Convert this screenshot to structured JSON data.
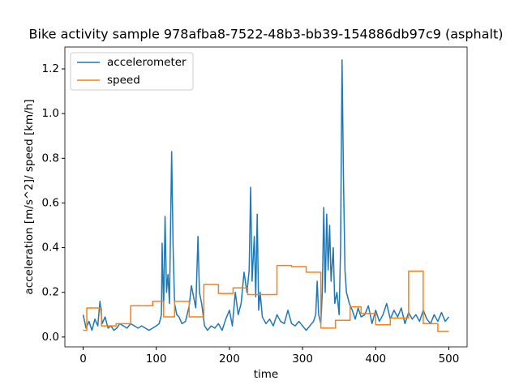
{
  "chart_data": {
    "type": "line",
    "title": "Bike activity sample 978afba8-7522-48b3-bb39-154886db97c9 (asphalt)",
    "xlabel": "time",
    "ylabel": "acceleration [m/s^2]/ speed [km/h]",
    "xlim": [
      -25,
      525
    ],
    "ylim": [
      -0.044,
      1.298
    ],
    "xticks": [
      0,
      100,
      200,
      300,
      400,
      500
    ],
    "yticks": [
      {
        "value": 0.0,
        "label": "0.0"
      },
      0.2,
      0.4,
      0.6,
      0.8,
      {
        "value": 1.0,
        "label": "1.0"
      },
      1.2
    ],
    "legend": "upper left",
    "series": [
      {
        "name": "accelerometer",
        "color": "#1f77b4",
        "x": [
          0,
          4,
          8,
          12,
          16,
          20,
          23,
          26,
          30,
          34,
          38,
          42,
          46,
          50,
          55,
          60,
          65,
          70,
          75,
          80,
          85,
          90,
          95,
          100,
          104,
          107,
          108,
          110,
          112,
          114,
          116,
          118,
          120,
          121,
          123,
          125,
          128,
          131,
          135,
          140,
          145,
          148,
          151,
          154,
          157,
          159,
          162,
          166,
          170,
          175,
          180,
          185,
          190,
          195,
          200,
          204,
          208,
          212,
          216,
          220,
          224,
          227,
          229,
          231,
          234,
          236,
          238,
          240,
          242,
          245,
          250,
          255,
          260,
          265,
          270,
          275,
          280,
          285,
          290,
          295,
          300,
          305,
          310,
          315,
          318,
          320,
          322,
          325,
          327,
          329,
          331,
          333,
          335,
          337,
          339,
          342,
          344,
          347,
          350,
          352,
          354,
          356,
          358,
          360,
          364,
          368,
          372,
          376,
          380,
          385,
          390,
          395,
          400,
          405,
          410,
          415,
          420,
          425,
          430,
          435,
          440,
          445,
          450,
          455,
          460,
          465,
          470,
          475,
          480,
          485,
          490,
          495,
          500
        ],
        "values": [
          0.1,
          0.04,
          0.07,
          0.03,
          0.08,
          0.05,
          0.16,
          0.06,
          0.09,
          0.04,
          0.05,
          0.03,
          0.04,
          0.06,
          0.05,
          0.04,
          0.06,
          0.05,
          0.04,
          0.05,
          0.04,
          0.03,
          0.04,
          0.05,
          0.06,
          0.1,
          0.42,
          0.12,
          0.54,
          0.2,
          0.28,
          0.15,
          0.6,
          0.83,
          0.4,
          0.15,
          0.1,
          0.09,
          0.06,
          0.07,
          0.14,
          0.23,
          0.18,
          0.13,
          0.45,
          0.2,
          0.15,
          0.05,
          0.03,
          0.05,
          0.04,
          0.06,
          0.03,
          0.08,
          0.12,
          0.05,
          0.2,
          0.1,
          0.15,
          0.29,
          0.2,
          0.3,
          0.67,
          0.25,
          0.45,
          0.18,
          0.55,
          0.12,
          0.2,
          0.09,
          0.06,
          0.08,
          0.05,
          0.1,
          0.07,
          0.06,
          0.12,
          0.06,
          0.05,
          0.07,
          0.05,
          0.03,
          0.05,
          0.07,
          0.1,
          0.25,
          0.1,
          0.06,
          0.2,
          0.58,
          0.2,
          0.55,
          0.3,
          0.5,
          0.25,
          0.4,
          0.15,
          0.2,
          0.1,
          0.4,
          1.24,
          0.7,
          0.3,
          0.2,
          0.15,
          0.12,
          0.08,
          0.13,
          0.09,
          0.1,
          0.14,
          0.06,
          0.12,
          0.07,
          0.1,
          0.15,
          0.08,
          0.12,
          0.09,
          0.13,
          0.06,
          0.11,
          0.08,
          0.1,
          0.07,
          0.12,
          0.08,
          0.06,
          0.1,
          0.07,
          0.11,
          0.07,
          0.09
        ]
      },
      {
        "name": "speed",
        "color": "#ff7f0e",
        "x": [
          0,
          5,
          5,
          25,
          25,
          45,
          45,
          65,
          65,
          85,
          85,
          95,
          95,
          110,
          110,
          125,
          125,
          145,
          145,
          165,
          165,
          185,
          185,
          205,
          205,
          225,
          225,
          265,
          265,
          285,
          285,
          305,
          305,
          325,
          325,
          345,
          345,
          365,
          365,
          380,
          380,
          400,
          400,
          420,
          420,
          445,
          445,
          465,
          465,
          485,
          485,
          500
        ],
        "values": [
          0.03,
          0.03,
          0.13,
          0.13,
          0.05,
          0.05,
          0.06,
          0.06,
          0.14,
          0.14,
          0.14,
          0.14,
          0.16,
          0.16,
          0.09,
          0.09,
          0.16,
          0.16,
          0.09,
          0.09,
          0.235,
          0.235,
          0.195,
          0.195,
          0.22,
          0.22,
          0.19,
          0.19,
          0.32,
          0.32,
          0.315,
          0.315,
          0.29,
          0.29,
          0.04,
          0.04,
          0.075,
          0.075,
          0.135,
          0.135,
          0.105,
          0.105,
          0.055,
          0.055,
          0.085,
          0.085,
          0.295,
          0.295,
          0.06,
          0.06,
          0.025,
          0.025
        ]
      }
    ]
  }
}
